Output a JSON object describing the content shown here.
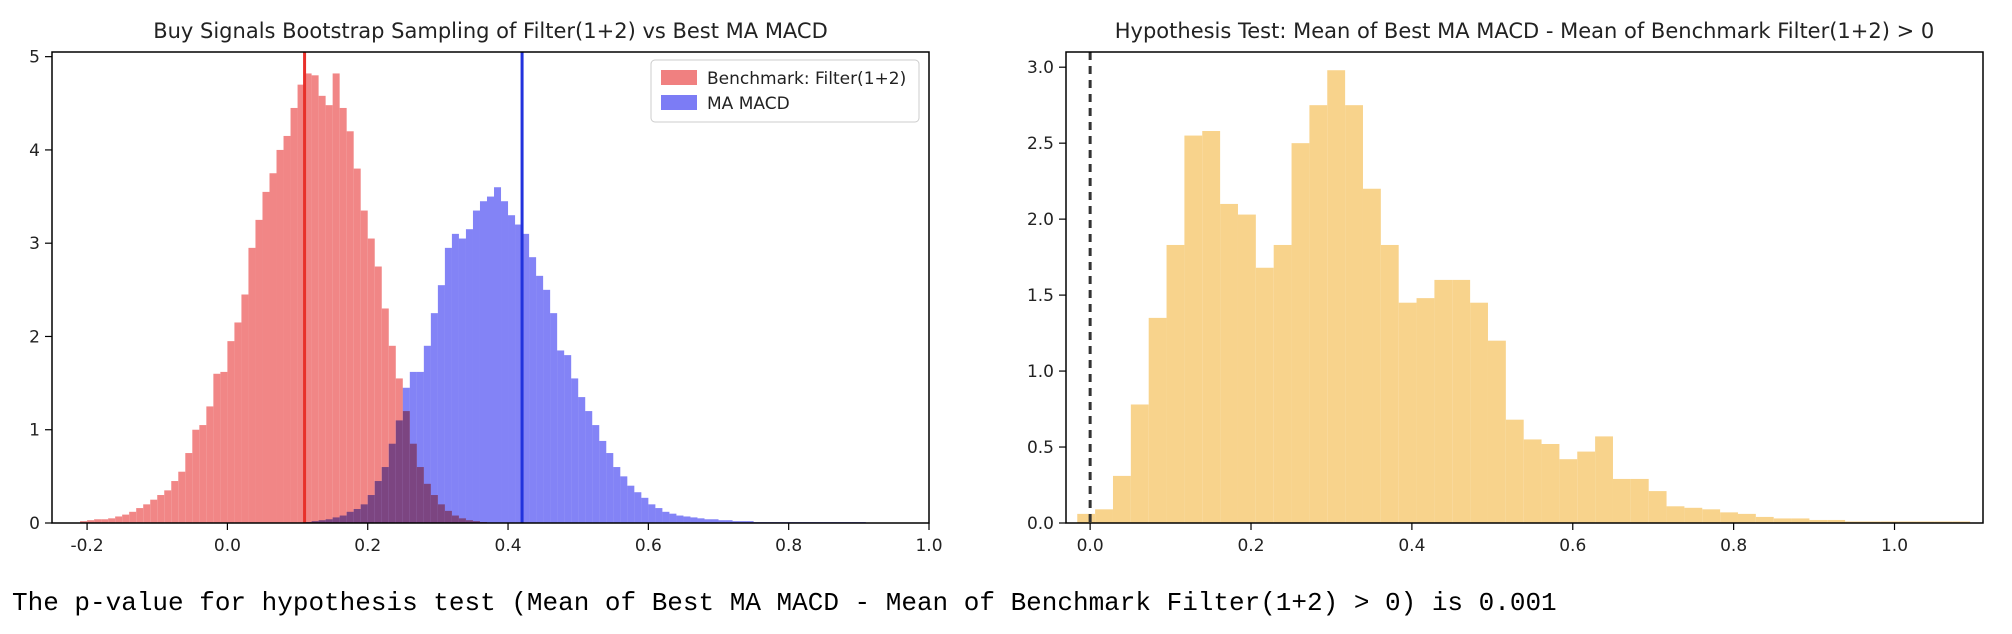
{
  "chart_data": [
    {
      "type": "histogram",
      "title": "Buy Signals Bootstrap Sampling of Filter(1+2) vs Best MA MACD",
      "xlim": [
        -0.25,
        1.0
      ],
      "ylim": [
        0,
        5.05
      ],
      "xticks": [
        "-0.2",
        "0.0",
        "0.2",
        "0.4",
        "0.6",
        "0.8",
        "1.0"
      ],
      "xtick_values": [
        -0.2,
        0.0,
        0.2,
        0.4,
        0.6,
        0.8,
        1.0
      ],
      "yticks": [
        "0",
        "1",
        "2",
        "3",
        "4",
        "5"
      ],
      "ytick_values": [
        0,
        1,
        2,
        3,
        4,
        5
      ],
      "legend_position": "top-right",
      "series": [
        {
          "name": "Benchmark: Filter(1+2)",
          "color": "#f08080",
          "bin_start": -0.21,
          "bin_width": 0.01,
          "values": [
            0.02,
            0.03,
            0.04,
            0.04,
            0.05,
            0.07,
            0.09,
            0.12,
            0.16,
            0.2,
            0.25,
            0.3,
            0.35,
            0.45,
            0.55,
            0.75,
            1.0,
            1.05,
            1.25,
            1.6,
            1.62,
            1.95,
            2.15,
            2.45,
            2.95,
            3.25,
            3.55,
            3.75,
            4.0,
            4.15,
            4.45,
            4.7,
            4.82,
            4.8,
            4.58,
            4.48,
            4.82,
            4.45,
            4.2,
            3.8,
            3.35,
            3.05,
            2.75,
            2.3,
            1.9,
            1.55,
            1.2,
            0.85,
            0.6,
            0.42,
            0.3,
            0.2,
            0.13,
            0.08,
            0.05,
            0.03,
            0.02,
            0.01
          ],
          "mean_line": 0.11,
          "mean_line_color": "#e8302a"
        },
        {
          "name": "MA MACD",
          "color": "#7c7cf5",
          "bin_start": 0.11,
          "bin_width": 0.01,
          "values": [
            0.01,
            0.02,
            0.03,
            0.04,
            0.06,
            0.08,
            0.12,
            0.15,
            0.2,
            0.3,
            0.45,
            0.6,
            0.85,
            1.1,
            1.45,
            1.62,
            1.62,
            1.9,
            2.25,
            2.55,
            2.95,
            3.1,
            3.05,
            3.15,
            3.35,
            3.45,
            3.5,
            3.6,
            3.45,
            3.3,
            3.2,
            3.1,
            2.85,
            2.65,
            2.5,
            2.25,
            1.85,
            1.8,
            1.55,
            1.35,
            1.2,
            1.05,
            0.88,
            0.75,
            0.6,
            0.5,
            0.4,
            0.33,
            0.27,
            0.2,
            0.16,
            0.12,
            0.1,
            0.08,
            0.07,
            0.06,
            0.05,
            0.04,
            0.04,
            0.03,
            0.03,
            0.02,
            0.02,
            0.02,
            0.01,
            0.01,
            0.01,
            0.01,
            0.01,
            0.01,
            0.01,
            0.01,
            0.01,
            0.01,
            0.01,
            0.01,
            0.01,
            0.01,
            0.01,
            0.01
          ],
          "mean_line": 0.42,
          "mean_line_color": "#2233dd"
        }
      ]
    },
    {
      "type": "histogram",
      "title": "Hypothesis Test: Mean of Best MA MACD - Mean of Benchmark Filter(1+2) > 0",
      "xlim": [
        -0.03,
        1.11
      ],
      "ylim": [
        0,
        3.1
      ],
      "xticks": [
        "0.0",
        "0.2",
        "0.4",
        "0.6",
        "0.8",
        "1.0"
      ],
      "xtick_values": [
        0.0,
        0.2,
        0.4,
        0.6,
        0.8,
        1.0
      ],
      "yticks": [
        "0.0",
        "0.5",
        "1.0",
        "1.5",
        "2.0",
        "2.5",
        "3.0"
      ],
      "ytick_values": [
        0.0,
        0.5,
        1.0,
        1.5,
        2.0,
        2.5,
        3.0
      ],
      "reference_line": 0.0,
      "series": [
        {
          "color": "#f8d38c",
          "bin_start": -0.016,
          "bin_width": 0.0222,
          "values": [
            0.06,
            0.09,
            0.31,
            0.78,
            1.35,
            1.83,
            2.55,
            2.58,
            2.1,
            2.03,
            1.68,
            1.83,
            2.5,
            2.75,
            2.98,
            2.75,
            2.2,
            1.83,
            1.45,
            1.48,
            1.6,
            1.6,
            1.45,
            1.2,
            0.68,
            0.55,
            0.52,
            0.42,
            0.47,
            0.57,
            0.29,
            0.29,
            0.21,
            0.11,
            0.1,
            0.09,
            0.07,
            0.06,
            0.04,
            0.03,
            0.03,
            0.02,
            0.02,
            0.01,
            0.01,
            0.01,
            0.01,
            0.01,
            0.01,
            0.01,
            0.0,
            0.0,
            0.0,
            0.0,
            0.0,
            0.02
          ]
        }
      ]
    }
  ],
  "caption": "The p-value for hypothesis test (Mean of Best MA MACD - Mean of Benchmark Filter(1+2) > 0) is 0.001"
}
